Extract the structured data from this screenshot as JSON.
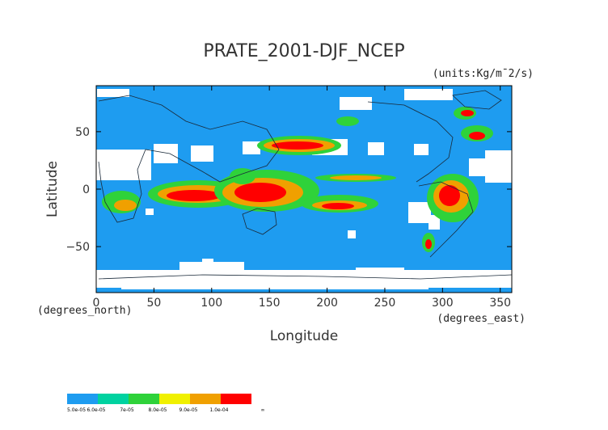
{
  "chart_data": {
    "type": "heatmap",
    "title": "PRATE_2001-DJF_NCEP",
    "units": "(units:Kg/m¯2/s)",
    "xlabel": "Longitude",
    "ylabel": "Latitude",
    "x_unit_note": "(degrees_east)",
    "y_unit_note": "(degrees_north)",
    "xlim": [
      0,
      360
    ],
    "ylim": [
      -90,
      90
    ],
    "x_ticks": [
      0,
      50,
      100,
      150,
      200,
      250,
      300,
      350
    ],
    "y_ticks": [
      50,
      0,
      -50
    ],
    "x_tick_labels": [
      "0",
      "50",
      "100",
      "150",
      "200",
      "250",
      "300",
      "350"
    ],
    "y_tick_labels": [
      "50",
      "0",
      "−50"
    ],
    "colorbar": {
      "colors": [
        "#1e9cf0",
        "#00d2a0",
        "#2fd23a",
        "#f0f000",
        "#f0a000",
        "#ff0000"
      ],
      "labels": [
        "5.0e-05",
        "6.0e-05",
        "7e-05",
        "8.0e-05",
        "9.0e-05",
        "1.0e-04",
        "∞"
      ]
    }
  }
}
